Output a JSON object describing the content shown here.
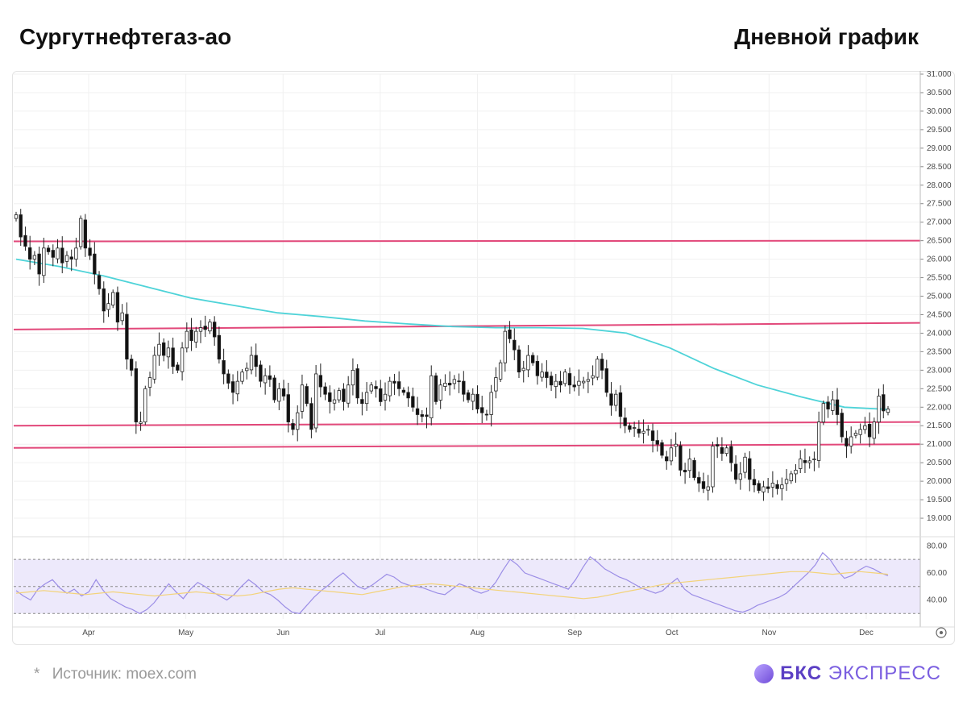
{
  "header": {
    "ticker_title": "Сургутнефтегаз-ао",
    "chart_type_title": "Дневной график"
  },
  "footer": {
    "source_star": "*",
    "source_text": "Источник: moex.com",
    "brand_part1": "БКС",
    "brand_part2": "ЭКСПРЕСС"
  },
  "colors": {
    "up_candle": "#ffffff",
    "down_candle": "#111111",
    "wick": "#222222",
    "ma_line": "#4ed3d8",
    "level_line": "#e2487a",
    "rsi_line": "#9b8de6",
    "rsi_signal": "#f3d37a",
    "rsi_band": "#ede9fb",
    "grid": "#f0f0f0",
    "brand": "#5b3fc4"
  },
  "chart_data": [
    {
      "type": "candlestick",
      "title": "",
      "ylim": [
        18.5,
        31.0
      ],
      "y_ticks": [
        "31.000",
        "30.500",
        "30.000",
        "29.500",
        "29.000",
        "28.500",
        "28.000",
        "27.500",
        "27.000",
        "26.500",
        "26.000",
        "25.500",
        "25.000",
        "24.500",
        "24.000",
        "23.500",
        "23.000",
        "22.500",
        "22.000",
        "21.500",
        "21.000",
        "20.500",
        "20.000",
        "19.500",
        "19.000"
      ],
      "x_labels": [
        "Apr",
        "May",
        "Jun",
        "Jul",
        "Aug",
        "Sep",
        "Oct",
        "Nov",
        "Dec"
      ],
      "grid": true,
      "y_axis_position": "right",
      "closes": [
        27.2,
        26.6,
        26.35,
        26.0,
        26.1,
        25.6,
        26.3,
        26.2,
        26.05,
        26.3,
        25.9,
        26.1,
        26.0,
        26.3,
        27.1,
        26.3,
        26.1,
        25.6,
        25.2,
        24.6,
        24.8,
        25.1,
        24.3,
        24.55,
        23.3,
        23.0,
        21.6,
        21.6,
        22.5,
        22.8,
        23.4,
        23.7,
        23.4,
        23.6,
        23.1,
        23.0,
        23.6,
        24.05,
        23.8,
        24.05,
        24.15,
        24.1,
        24.3,
        23.9,
        23.3,
        22.9,
        22.65,
        22.4,
        22.7,
        22.95,
        23.05,
        23.4,
        23.1,
        22.7,
        22.85,
        22.75,
        22.2,
        22.5,
        22.3,
        21.6,
        21.4,
        21.85,
        22.6,
        22.1,
        21.4,
        22.9,
        22.55,
        22.35,
        22.15,
        22.2,
        22.45,
        22.15,
        22.6,
        23.0,
        22.25,
        22.1,
        22.4,
        22.6,
        22.5,
        22.15,
        22.35,
        22.7,
        22.65,
        22.5,
        22.4,
        22.25,
        22.0,
        21.8,
        21.75,
        21.75,
        22.85,
        22.15,
        22.6,
        22.65,
        22.6,
        22.75,
        22.7,
        22.35,
        22.2,
        22.35,
        21.95,
        21.85,
        21.8,
        22.4,
        22.8,
        23.2,
        24.05,
        23.85,
        23.55,
        22.95,
        23.05,
        23.4,
        23.2,
        22.85,
        22.95,
        22.8,
        22.6,
        22.7,
        22.6,
        22.95,
        22.6,
        22.55,
        22.7,
        22.7,
        22.75,
        22.85,
        23.3,
        23.0,
        22.4,
        22.05,
        22.35,
        21.75,
        21.5,
        21.4,
        21.45,
        21.3,
        21.35,
        21.4,
        21.1,
        21.0,
        20.7,
        20.55,
        20.9,
        21.0,
        20.3,
        20.25,
        20.6,
        20.1,
        19.95,
        19.8,
        19.85,
        20.95,
        20.95,
        20.75,
        20.9,
        20.5,
        20.05,
        20.2,
        20.65,
        20.05,
        19.9,
        19.75,
        19.85,
        19.8,
        19.95,
        19.8,
        19.9,
        20.05,
        20.2,
        20.3,
        20.6,
        20.5,
        20.55,
        20.6,
        21.6,
        22.1,
        21.95,
        22.2,
        21.8,
        21.2,
        20.95,
        21.2,
        21.3,
        21.4,
        21.5,
        21.2,
        21.6,
        22.3,
        21.9,
        21.95
      ],
      "ma_line": [
        26.0,
        25.8,
        25.55,
        25.25,
        24.95,
        24.75,
        24.55,
        24.45,
        24.33,
        24.25,
        24.18,
        24.15,
        24.15,
        24.13,
        24.0,
        23.6,
        23.05,
        22.6,
        22.28,
        22.0,
        21.94
      ],
      "levels": [
        {
          "value": 26.48,
          "end_value": 26.5
        },
        {
          "value": 24.1,
          "end_value": 24.28
        },
        {
          "value": 21.5,
          "end_value": 21.6
        },
        {
          "value": 20.9,
          "end_value": 21.0
        }
      ]
    },
    {
      "type": "line",
      "title": "",
      "ylim": [
        26,
        82
      ],
      "y_ticks": [
        "80.00",
        "60.00",
        "40.00"
      ],
      "bands": [
        30,
        50,
        70
      ],
      "series": [
        {
          "values": [
            47.0,
            43.0,
            40.0,
            48.0,
            52.0,
            55.0,
            49.0,
            45.0,
            48.0,
            43.0,
            46.0,
            55.0,
            47.0,
            41.0,
            38.0,
            35.0,
            33.0,
            30.0,
            33.0,
            38.0,
            45.0,
            52.0,
            46.0,
            41.0,
            48.0,
            53.0,
            50.0,
            46.0,
            43.0,
            40.0,
            44.0,
            50.0,
            55.0,
            51.0,
            46.0,
            44.0,
            40.0,
            35.0,
            31.0,
            30.0,
            36.0,
            42.0,
            47.0,
            51.0,
            56.0,
            60.0,
            55.0,
            50.0,
            48.0,
            51.0,
            55.0,
            59.0,
            57.0,
            53.0,
            51.0,
            50.0,
            49.0,
            47.0,
            45.0,
            44.0,
            48.0,
            52.0,
            50.0,
            47.0,
            45.0,
            47.0,
            53.0,
            62.0,
            70.0,
            66.0,
            60.0,
            58.0,
            56.0,
            54.0,
            52.0,
            50.0,
            48.0,
            55.0,
            64.0,
            72.0,
            68.0,
            63.0,
            60.0,
            57.0,
            55.0,
            52.0,
            49.0,
            47.0,
            45.0,
            47.0,
            52.0,
            56.0,
            48.0,
            44.0,
            42.0,
            40.0,
            38.0,
            36.0,
            34.0,
            32.0,
            31.0,
            33.0,
            36.0,
            38.0,
            40.0,
            42.0,
            45.0,
            50.0,
            55.0,
            60.0,
            66.0,
            75.0,
            70.0,
            62.0,
            56.0,
            58.0,
            62.0,
            65.0,
            63.0,
            60.0,
            58.0
          ],
          "signal": [
            45.0,
            46.0,
            47.0,
            46.0,
            45.0,
            44.0,
            45.0,
            46.0,
            45.0,
            44.0,
            43.0,
            44.0,
            45.0,
            46.0,
            45.0,
            44.0,
            43.0,
            44.0,
            46.0,
            48.0,
            49.0,
            48.0,
            47.0,
            46.0,
            45.0,
            44.0,
            46.0,
            48.0,
            50.0,
            51.0,
            52.0,
            51.0,
            50.0,
            49.0,
            48.0,
            47.0,
            46.0,
            45.0,
            44.0,
            43.0,
            42.0,
            41.0,
            42.0,
            44.0,
            46.0,
            48.0,
            50.0,
            52.0,
            53.0,
            54.0,
            55.0,
            56.0,
            57.0,
            58.0,
            59.0,
            60.0,
            61.0,
            61.0,
            60.0,
            59.0,
            60.0,
            61.0,
            60.0,
            59.0
          ]
        }
      ]
    }
  ]
}
